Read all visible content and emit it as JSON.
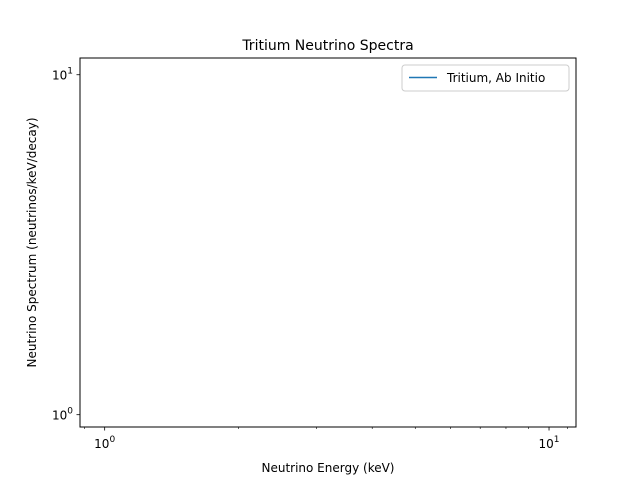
{
  "chart_data": {
    "type": "line",
    "title": "Tritium Neutrino Spectra",
    "xlabel": "Neutrino Energy (keV)",
    "ylabel": "Neutrino Spectrum (neutrinos/keV/decay)",
    "xscale": "log",
    "yscale": "log",
    "xlim": [
      0.88,
      11.5
    ],
    "ylim": [
      0.92,
      11.2
    ],
    "x_major_ticks": [
      {
        "value": 1,
        "base": "10",
        "exp": "0"
      },
      {
        "value": 10,
        "base": "10",
        "exp": "1"
      }
    ],
    "y_major_ticks": [
      {
        "value": 1,
        "base": "10",
        "exp": "0"
      },
      {
        "value": 10,
        "base": "10",
        "exp": "1"
      }
    ],
    "x_minor_ticks": [
      0.9,
      2,
      3,
      4,
      5,
      6,
      7,
      8,
      9,
      11
    ],
    "y_minor_ticks": [],
    "grid": false,
    "legend_position": "top-right",
    "series": [
      {
        "name": "Tritium, Ab Initio",
        "color": "#1f77b4",
        "x": [],
        "y": []
      }
    ]
  }
}
